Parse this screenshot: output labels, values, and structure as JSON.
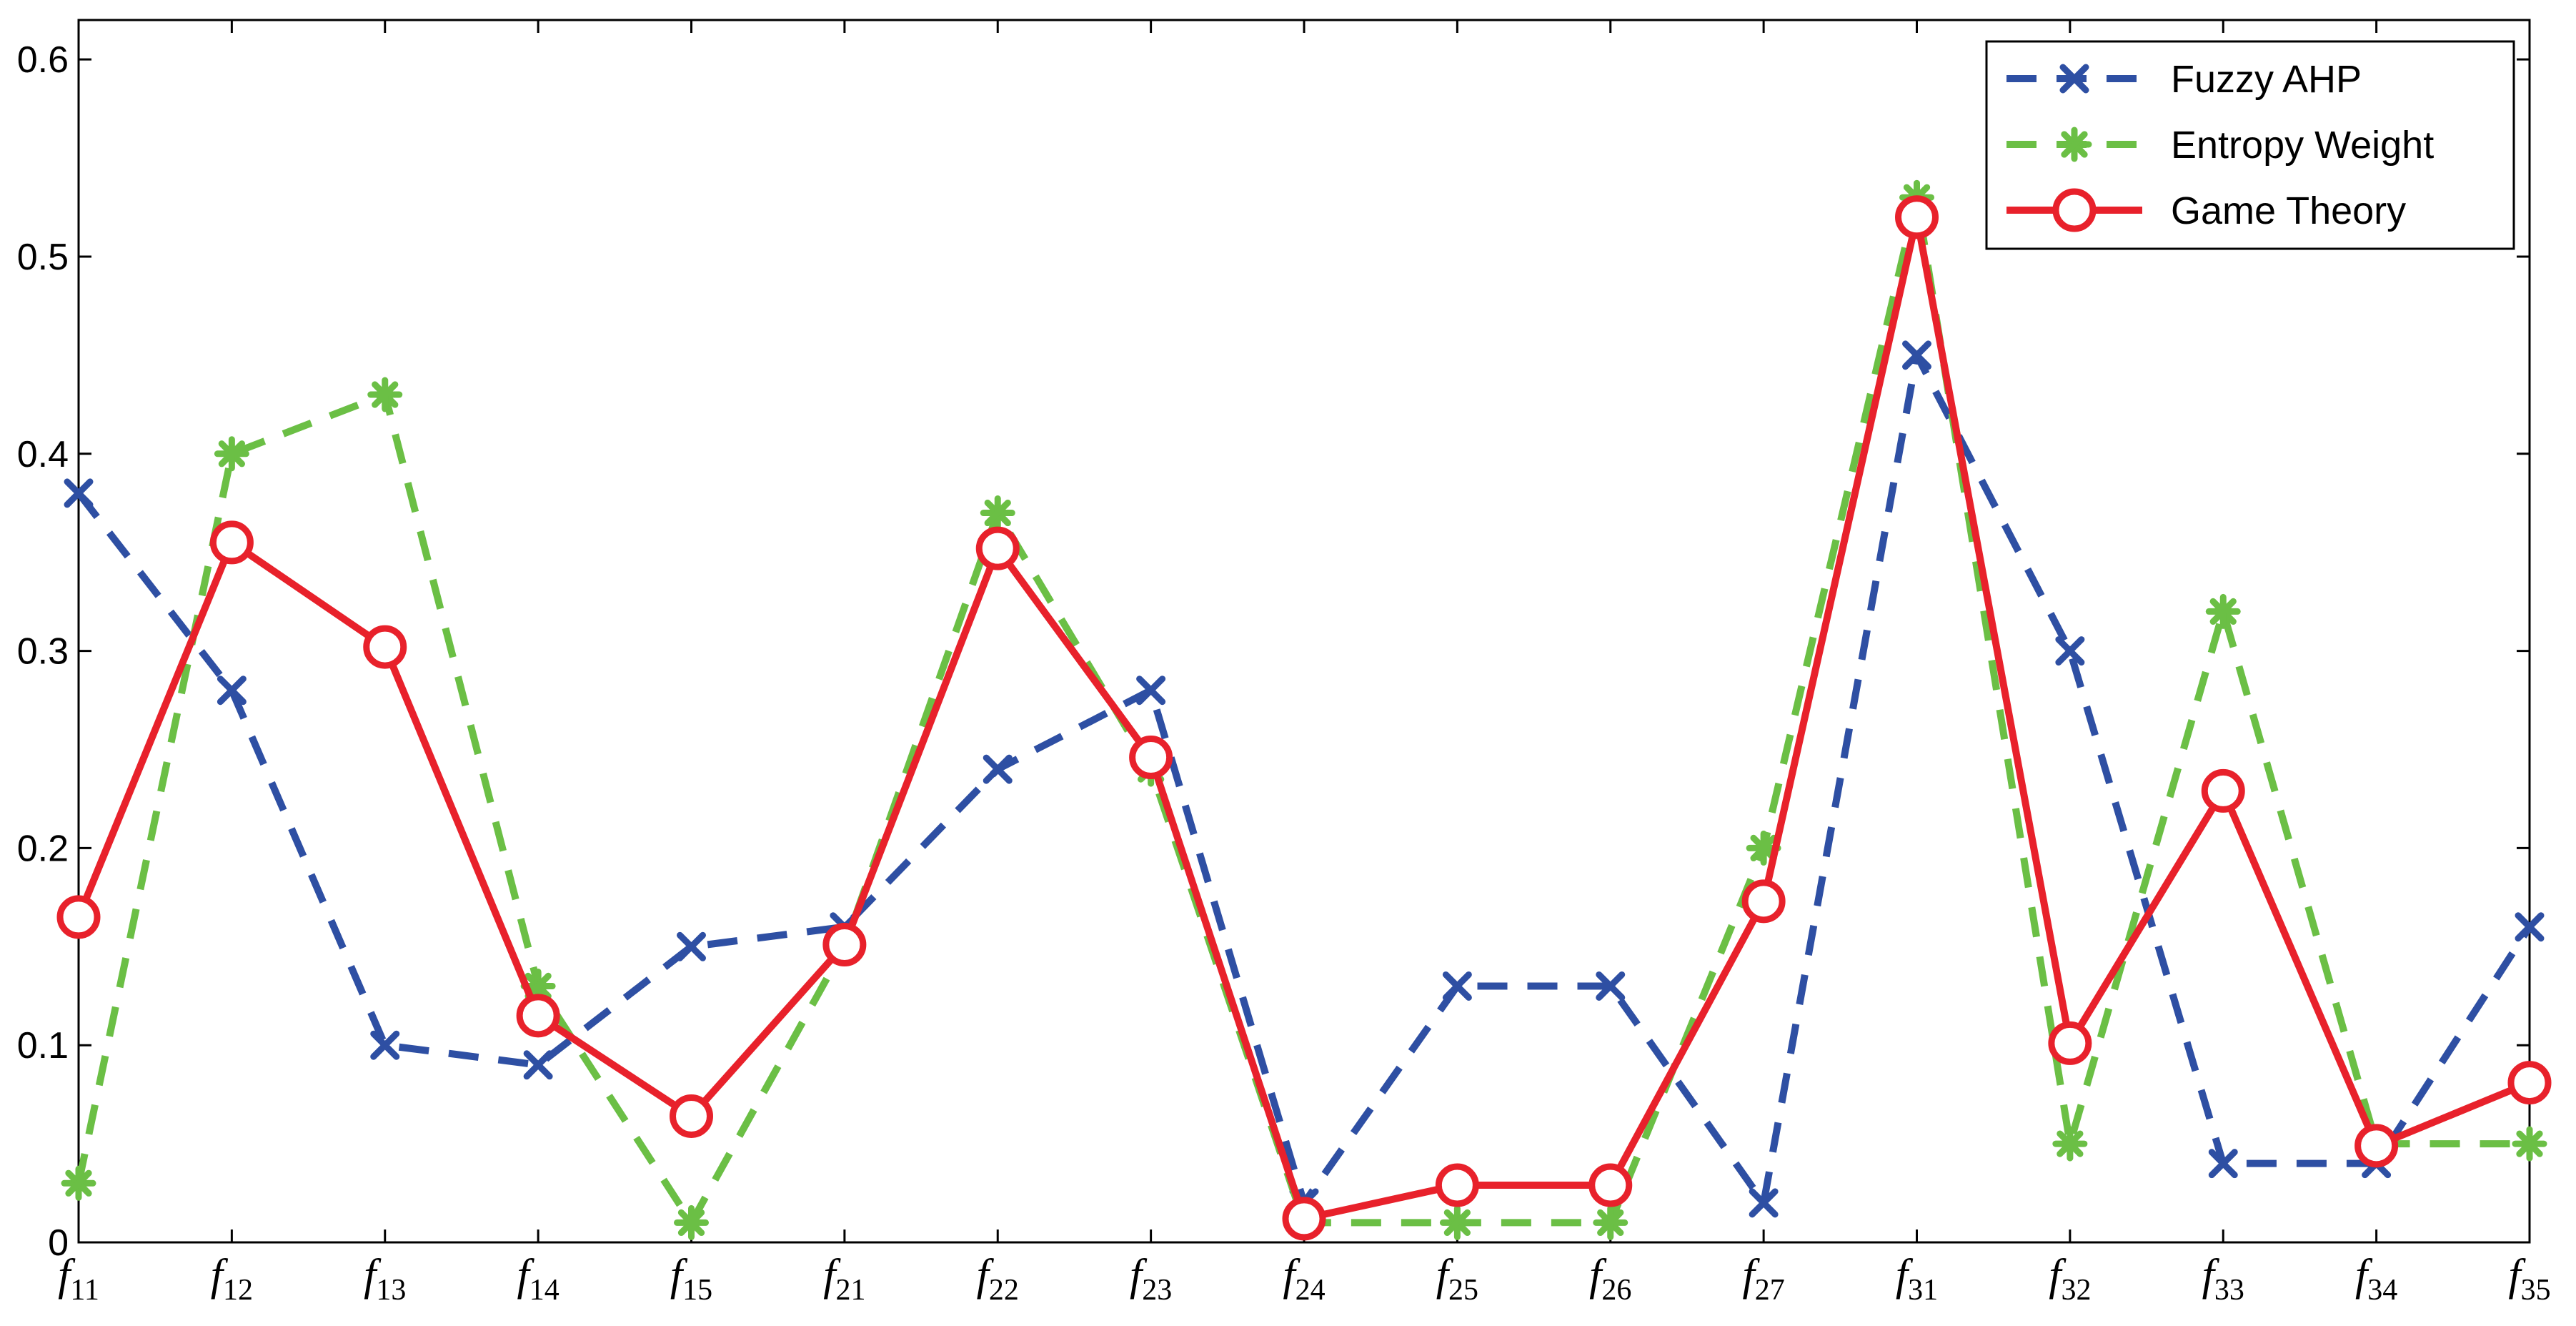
{
  "chart_data": {
    "type": "line",
    "categories": [
      {
        "base": "f",
        "sub": "11"
      },
      {
        "base": "f",
        "sub": "12"
      },
      {
        "base": "f",
        "sub": "13"
      },
      {
        "base": "f",
        "sub": "14"
      },
      {
        "base": "f",
        "sub": "15"
      },
      {
        "base": "f",
        "sub": "21"
      },
      {
        "base": "f",
        "sub": "22"
      },
      {
        "base": "f",
        "sub": "23"
      },
      {
        "base": "f",
        "sub": "24"
      },
      {
        "base": "f",
        "sub": "25"
      },
      {
        "base": "f",
        "sub": "26"
      },
      {
        "base": "f",
        "sub": "27"
      },
      {
        "base": "f",
        "sub": "31"
      },
      {
        "base": "f",
        "sub": "32"
      },
      {
        "base": "f",
        "sub": "33"
      },
      {
        "base": "f",
        "sub": "34"
      },
      {
        "base": "f",
        "sub": "35"
      }
    ],
    "ylim": [
      0,
      0.62
    ],
    "yticks": [
      "0",
      "0.1",
      "0.2",
      "0.3",
      "0.4",
      "0.5",
      "0.6"
    ],
    "ytick_values": [
      0,
      0.1,
      0.2,
      0.3,
      0.4,
      0.5,
      0.6
    ],
    "grid": false,
    "legend_position": "top-right",
    "series": [
      {
        "name": "Fuzzy AHP",
        "color": "#2E4FA3",
        "line_style": "dashed",
        "marker": "x",
        "values": [
          0.38,
          0.28,
          0.1,
          0.09,
          0.15,
          0.16,
          0.24,
          0.28,
          0.02,
          0.13,
          0.13,
          0.02,
          0.45,
          0.3,
          0.04,
          0.04,
          0.16
        ]
      },
      {
        "name": "Entropy Weight",
        "color": "#6BBF45",
        "line_style": "dashed",
        "marker": "asterisk",
        "values": [
          0.03,
          0.4,
          0.43,
          0.13,
          0.01,
          0.15,
          0.37,
          0.24,
          0.01,
          0.01,
          0.01,
          0.2,
          0.53,
          0.05,
          0.32,
          0.05,
          0.05
        ]
      },
      {
        "name": "Game Theory",
        "color": "#E8212B",
        "line_style": "solid",
        "marker": "circle",
        "values": [
          0.165,
          0.355,
          0.302,
          0.115,
          0.064,
          0.151,
          0.352,
          0.246,
          0.012,
          0.029,
          0.029,
          0.173,
          0.52,
          0.101,
          0.229,
          0.049,
          0.081
        ]
      }
    ]
  }
}
